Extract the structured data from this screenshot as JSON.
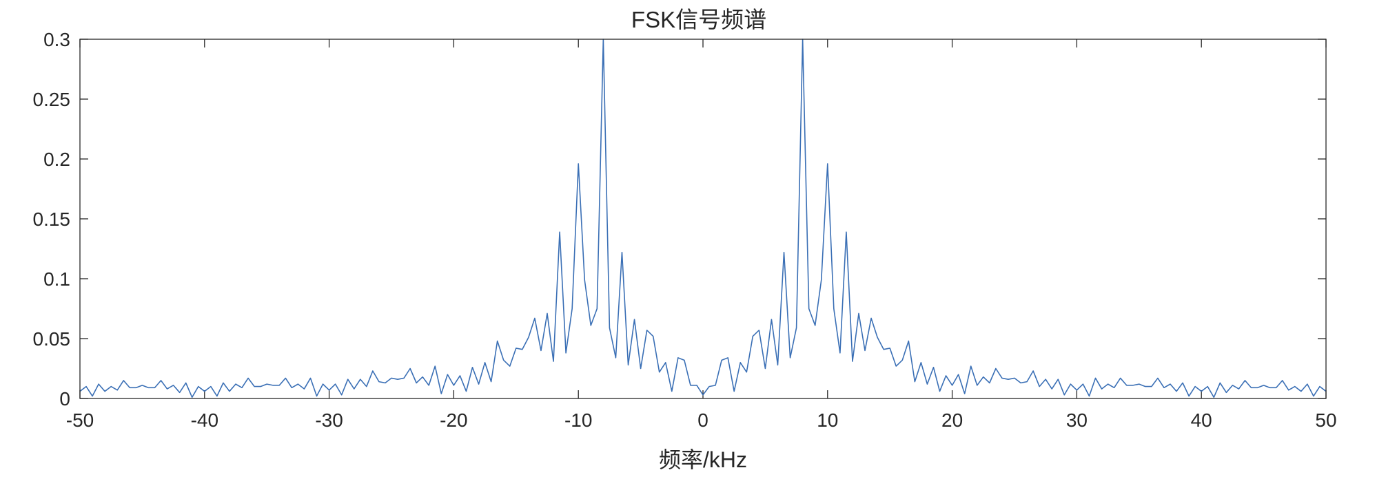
{
  "chart_data": {
    "type": "line",
    "title": "FSK信号频谱",
    "xlabel": "频率/kHz",
    "ylabel": "",
    "xlim": [
      -50,
      50
    ],
    "ylim": [
      0,
      0.3
    ],
    "xticks": [
      -50,
      -40,
      -30,
      -20,
      -10,
      0,
      10,
      20,
      30,
      40,
      50
    ],
    "xtick_labels": [
      "-50",
      "-40",
      "-30",
      "-20",
      "-10",
      "0",
      "10",
      "20",
      "30",
      "40",
      "50"
    ],
    "yticks": [
      0,
      0.05,
      0.1,
      0.15,
      0.2,
      0.25,
      0.3
    ],
    "ytick_labels": [
      "0",
      "0.05",
      "0.1",
      "0.15",
      "0.2",
      "0.25",
      "0.3"
    ],
    "grid": false,
    "line_color": "#3a6fb5",
    "series": [
      {
        "x": [
          -50.0,
          -49.5,
          -49.0,
          -48.5,
          -48.0,
          -47.5,
          -47.0,
          -46.5,
          -46.0,
          -45.5,
          -45.0,
          -44.5,
          -44.0,
          -43.5,
          -43.0,
          -42.5,
          -42.0,
          -41.5,
          -41.0,
          -40.5,
          -40.0,
          -39.5,
          -39.0,
          -38.5,
          -38.0,
          -37.5,
          -37.0,
          -36.5,
          -36.0,
          -35.5,
          -35.0,
          -34.5,
          -34.0,
          -33.5,
          -33.0,
          -32.5,
          -32.0,
          -31.5,
          -31.0,
          -30.5,
          -30.0,
          -29.5,
          -29.0,
          -28.5,
          -28.0,
          -27.5,
          -27.0,
          -26.5,
          -26.0,
          -25.5,
          -25.0,
          -24.5,
          -24.0,
          -23.5,
          -23.0,
          -22.5,
          -22.0,
          -21.5,
          -21.0,
          -20.5,
          -20.0,
          -19.5,
          -19.0,
          -18.5,
          -18.0,
          -17.5,
          -17.0,
          -16.5,
          -16.0,
          -15.5,
          -15.0,
          -14.5,
          -14.0,
          -13.5,
          -13.0,
          -12.5,
          -12.0,
          -11.5,
          -11.0,
          -10.5,
          -10.0,
          -9.5,
          -9.0,
          -8.5,
          -8.0,
          -7.5,
          -7.0,
          -6.5,
          -6.0,
          -5.5,
          -5.0,
          -4.5,
          -4.0,
          -3.5,
          -3.0,
          -2.5,
          -2.0,
          -1.5,
          -1.0,
          -0.5,
          0.0,
          0.5,
          1.0,
          1.5,
          2.0,
          2.5,
          3.0,
          3.5,
          4.0,
          4.5,
          5.0,
          5.5,
          6.0,
          6.5,
          7.0,
          7.5,
          8.0,
          8.5,
          9.0,
          9.5,
          10.0,
          10.5,
          11.0,
          11.5,
          12.0,
          12.5,
          13.0,
          13.5,
          14.0,
          14.5,
          15.0,
          15.5,
          16.0,
          16.5,
          17.0,
          17.5,
          18.0,
          18.5,
          19.0,
          19.5,
          20.0,
          20.5,
          21.0,
          21.5,
          22.0,
          22.5,
          23.0,
          23.5,
          24.0,
          24.5,
          25.0,
          25.5,
          26.0,
          26.5,
          27.0,
          27.5,
          28.0,
          28.5,
          29.0,
          29.5,
          30.0,
          30.5,
          31.0,
          31.5,
          32.0,
          32.5,
          33.0,
          33.5,
          34.0,
          34.5,
          35.0,
          35.5,
          36.0,
          36.5,
          37.0,
          37.5,
          38.0,
          38.5,
          39.0,
          39.5,
          40.0,
          40.5,
          41.0,
          41.5,
          42.0,
          42.5,
          43.0,
          43.5,
          44.0,
          44.5,
          45.0,
          45.5,
          46.0,
          46.5,
          47.0,
          47.5,
          48.0,
          48.5,
          49.0,
          49.5,
          50.0
        ],
        "y": [
          0.006,
          0.01,
          0.002,
          0.012,
          0.006,
          0.01,
          0.007,
          0.015,
          0.009,
          0.009,
          0.011,
          0.009,
          0.009,
          0.015,
          0.008,
          0.011,
          0.005,
          0.013,
          0.001,
          0.01,
          0.006,
          0.01,
          0.002,
          0.013,
          0.006,
          0.012,
          0.009,
          0.017,
          0.01,
          0.01,
          0.012,
          0.011,
          0.011,
          0.017,
          0.009,
          0.012,
          0.008,
          0.017,
          0.002,
          0.012,
          0.007,
          0.012,
          0.003,
          0.016,
          0.008,
          0.016,
          0.01,
          0.023,
          0.014,
          0.013,
          0.017,
          0.016,
          0.017,
          0.025,
          0.013,
          0.018,
          0.011,
          0.027,
          0.004,
          0.02,
          0.011,
          0.019,
          0.006,
          0.026,
          0.012,
          0.03,
          0.014,
          0.048,
          0.032,
          0.027,
          0.042,
          0.041,
          0.051,
          0.067,
          0.04,
          0.071,
          0.031,
          0.139,
          0.038,
          0.075,
          0.196,
          0.099,
          0.061,
          0.075,
          0.3,
          0.059,
          0.034,
          0.122,
          0.028,
          0.066,
          0.025,
          0.057,
          0.052,
          0.022,
          0.03,
          0.006,
          0.034,
          0.032,
          0.011,
          0.011,
          0.003,
          0.01,
          0.011,
          0.032,
          0.034,
          0.006,
          0.03,
          0.022,
          0.052,
          0.057,
          0.025,
          0.066,
          0.028,
          0.122,
          0.034,
          0.059,
          0.3,
          0.075,
          0.061,
          0.099,
          0.196,
          0.075,
          0.038,
          0.139,
          0.031,
          0.071,
          0.04,
          0.067,
          0.051,
          0.041,
          0.042,
          0.027,
          0.032,
          0.048,
          0.014,
          0.03,
          0.012,
          0.026,
          0.006,
          0.019,
          0.011,
          0.02,
          0.004,
          0.027,
          0.011,
          0.018,
          0.013,
          0.025,
          0.017,
          0.016,
          0.017,
          0.013,
          0.014,
          0.023,
          0.01,
          0.016,
          0.008,
          0.016,
          0.003,
          0.012,
          0.007,
          0.012,
          0.002,
          0.017,
          0.008,
          0.012,
          0.009,
          0.017,
          0.011,
          0.011,
          0.012,
          0.01,
          0.01,
          0.017,
          0.009,
          0.012,
          0.006,
          0.013,
          0.002,
          0.01,
          0.006,
          0.01,
          0.001,
          0.013,
          0.005,
          0.011,
          0.008,
          0.015,
          0.009,
          0.009,
          0.011,
          0.009,
          0.009,
          0.015,
          0.007,
          0.01,
          0.006,
          0.012,
          0.002,
          0.01,
          0.006
        ]
      }
    ]
  }
}
